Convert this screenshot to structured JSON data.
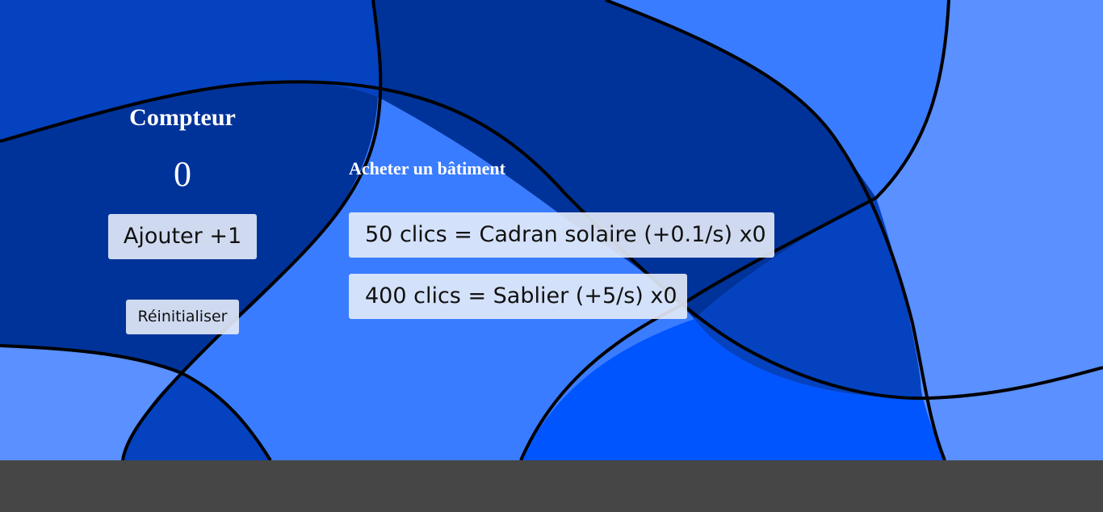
{
  "counter": {
    "title": "Compteur",
    "value": "0",
    "add_label": "Ajouter +1",
    "reset_label": "Réinitialiser"
  },
  "shop": {
    "title": "Acheter un bâtiment",
    "items": [
      {
        "label": "50 clics = Cadran solaire (+0.1/s) x0"
      },
      {
        "label": "400 clics = Sablier (+5/s) x0"
      }
    ]
  },
  "theme": {
    "button_bg": "#e5ecfa",
    "text_color": "#ffffff",
    "footer_color": "#464646",
    "blue_dark": "#003399",
    "blue_mid": "#0442c0",
    "blue_light": "#3a7cff",
    "blue_pale": "#5a90ff",
    "blue_bright": "#0055ff"
  }
}
